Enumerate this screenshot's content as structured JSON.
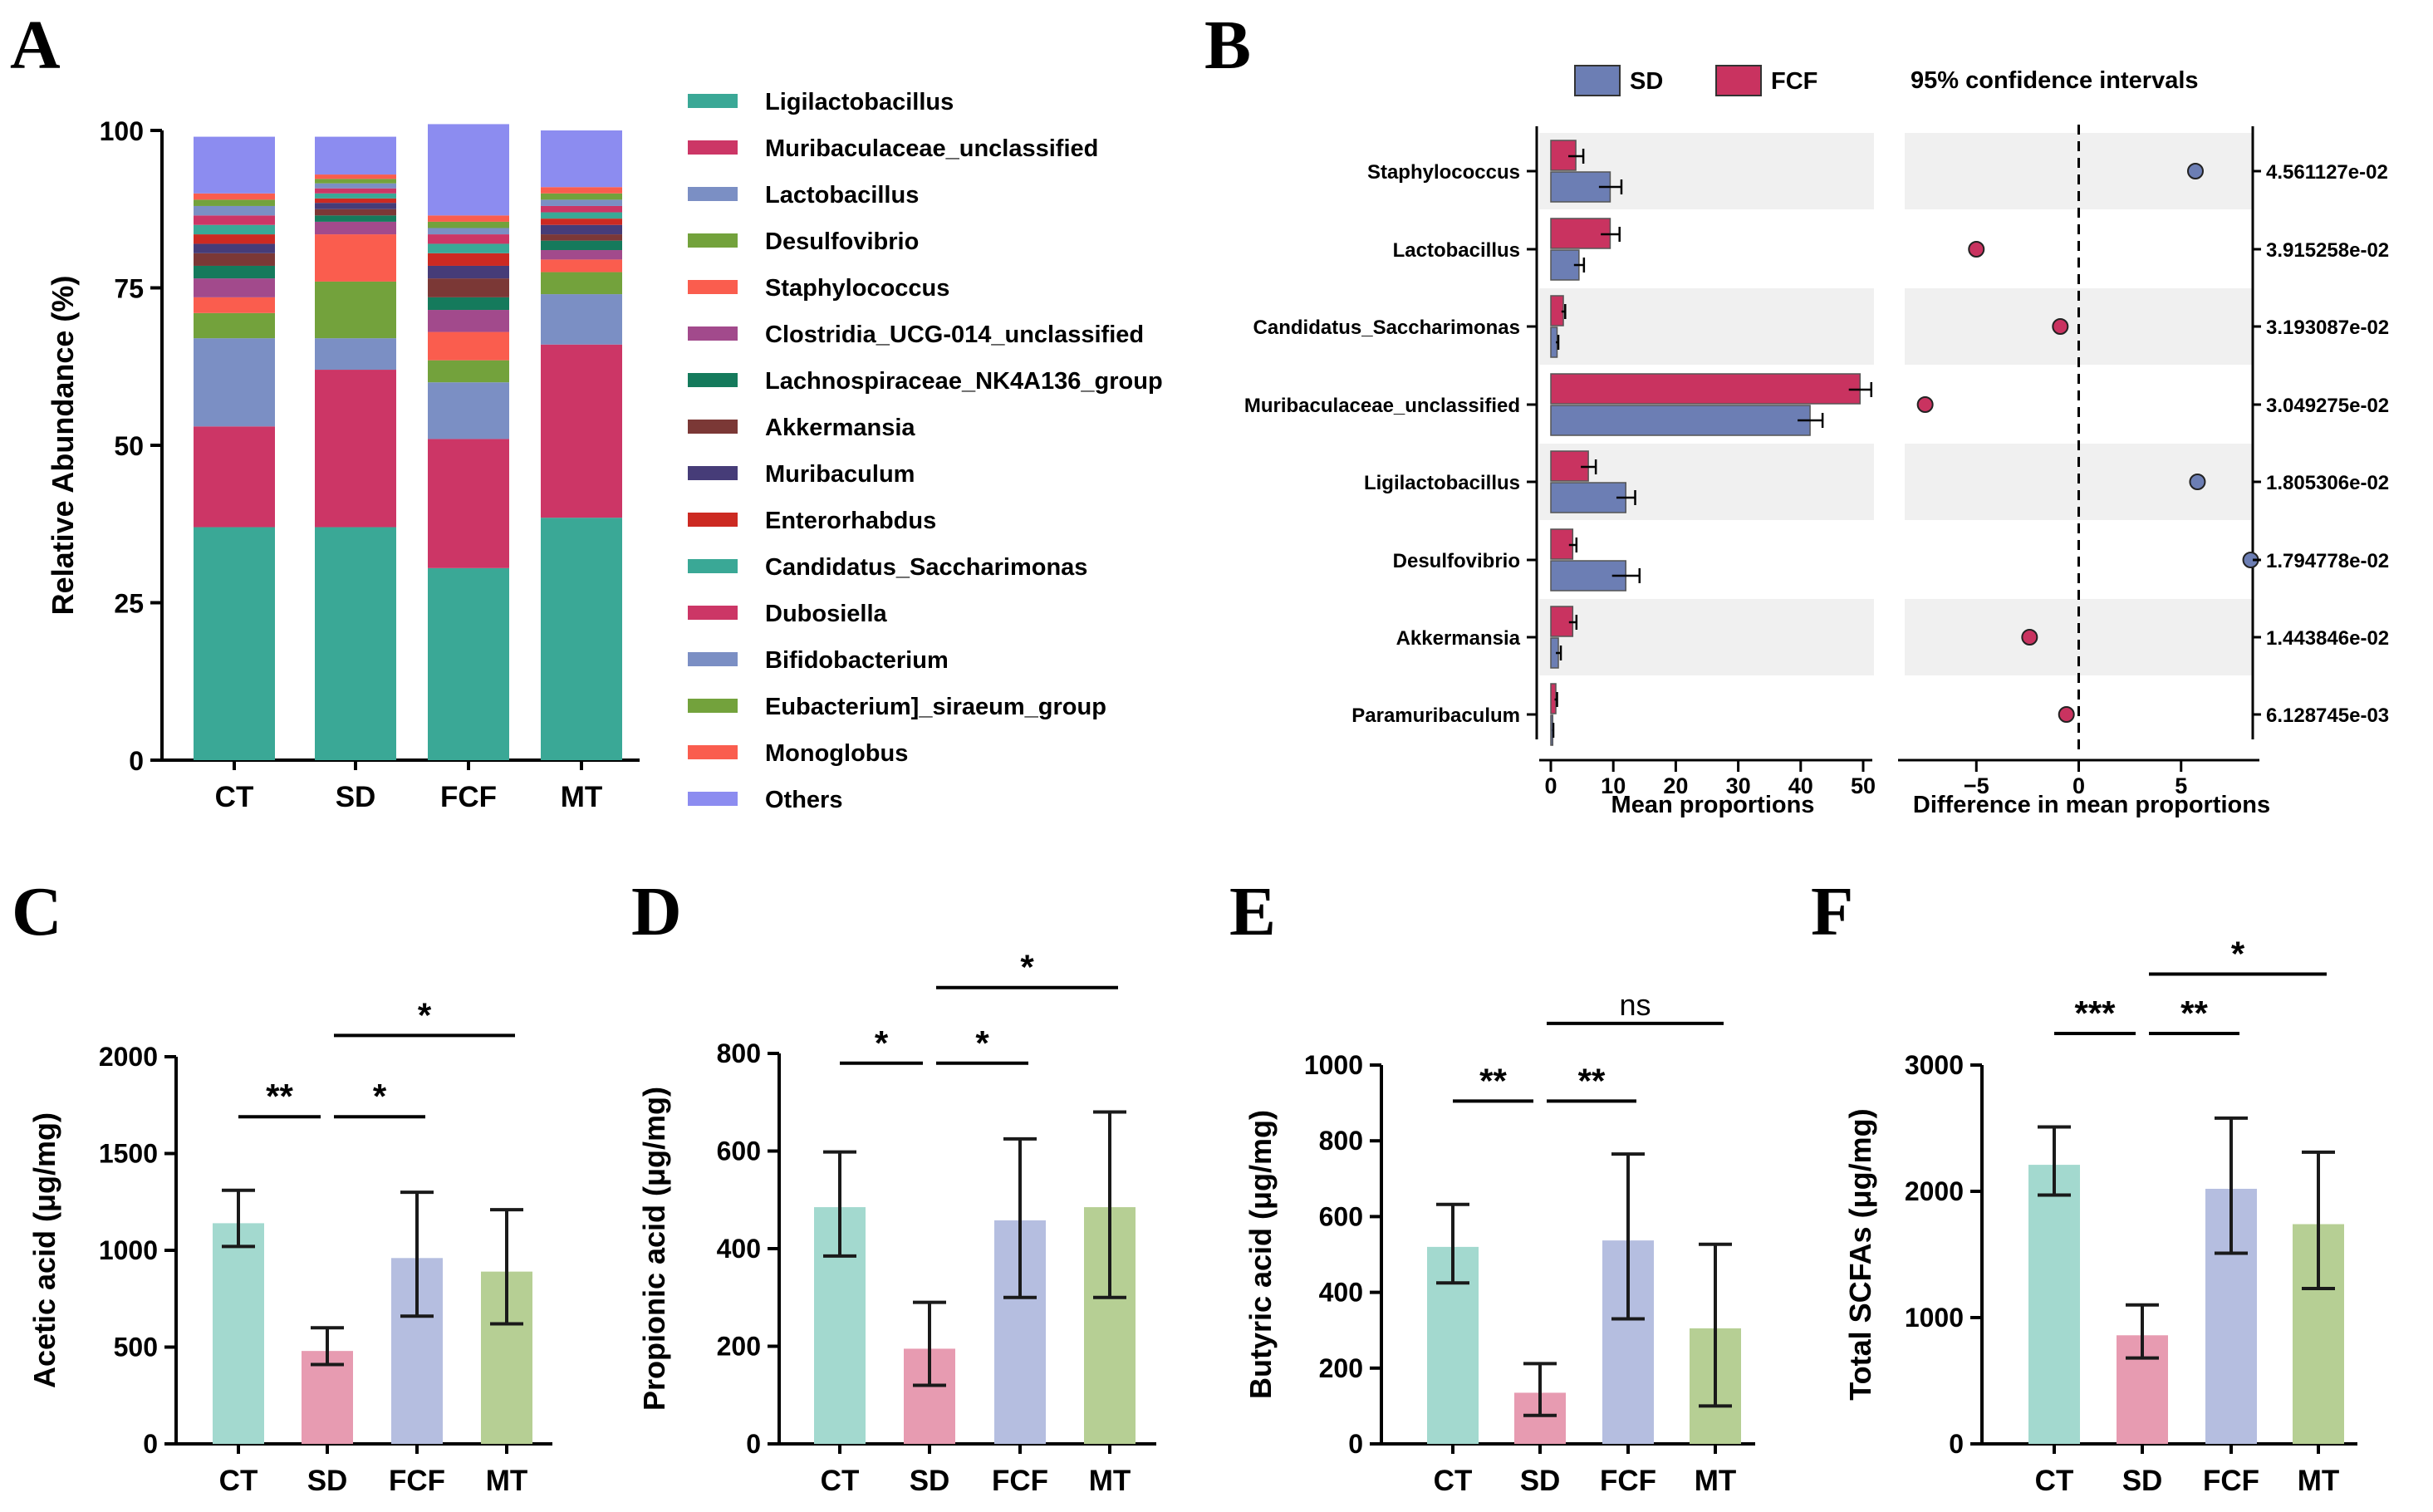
{
  "panels": {
    "a": "A",
    "b": "B",
    "c": "C",
    "d": "D",
    "e": "E",
    "f": "F"
  },
  "chart_data": [
    {
      "id": "A",
      "type": "bar",
      "stacked": true,
      "title": "",
      "xlabel": "",
      "ylabel": "Relative Abundance (%)",
      "ylim": [
        0,
        100
      ],
      "yticks": [
        "0",
        "25",
        "50",
        "75",
        "100"
      ],
      "categories": [
        "CT",
        "SD",
        "FCF",
        "MT"
      ],
      "series": [
        {
          "name": "Ligilactobacillus",
          "color": "#3aa896",
          "values": [
            37,
            37,
            30.5,
            38.5
          ]
        },
        {
          "name": "Muribaculaceae_unclassified",
          "color": "#cc3666",
          "values": [
            16,
            25,
            20.5,
            27.5
          ]
        },
        {
          "name": "Lactobacillus",
          "color": "#7b8fc4",
          "values": [
            14,
            5,
            9,
            8
          ]
        },
        {
          "name": "Desulfovibrio",
          "color": "#73a23c",
          "values": [
            4,
            9,
            3.5,
            3.5
          ]
        },
        {
          "name": "Staphylococcus",
          "color": "#fa5d4e",
          "values": [
            2.5,
            7.5,
            4.5,
            2
          ]
        },
        {
          "name": "Clostridia_UCG-014_unclassified",
          "color": "#a24a8c",
          "values": [
            3,
            2,
            3.5,
            1.5
          ]
        },
        {
          "name": "Lachnospiraceae_NK4A136_group",
          "color": "#157a5c",
          "values": [
            2,
            1,
            2,
            1.5
          ]
        },
        {
          "name": "Akkermansia",
          "color": "#7b3836",
          "values": [
            2,
            1,
            3,
            1
          ]
        },
        {
          "name": "Muribaculum",
          "color": "#463c78",
          "values": [
            1.5,
            1,
            2,
            1.5
          ]
        },
        {
          "name": "Enterorhabdus",
          "color": "#cc2a22",
          "values": [
            1.5,
            0.7,
            2,
            1
          ]
        },
        {
          "name": "Candidatus_Saccharimonas",
          "color": "#3aa896",
          "values": [
            1.5,
            0.8,
            1.5,
            1
          ]
        },
        {
          "name": "Dubosiella",
          "color": "#cc3666",
          "values": [
            1.5,
            0.8,
            1.5,
            1
          ]
        },
        {
          "name": "Bifidobacterium",
          "color": "#7b8fc4",
          "values": [
            1.5,
            0.8,
            1,
            1
          ]
        },
        {
          "name": "Eubacterium]_siraeum_group",
          "color": "#73a23c",
          "values": [
            1,
            0.7,
            1,
            1
          ]
        },
        {
          "name": "Monoglobus",
          "color": "#fa5d4e",
          "values": [
            1,
            0.7,
            1,
            1
          ]
        },
        {
          "name": "Others",
          "color": "#8c8cf0",
          "values": [
            9.0,
            6.0,
            14.5,
            9.0
          ]
        }
      ]
    },
    {
      "id": "B",
      "type": "bar",
      "subtype": "extended-error-bar",
      "legend": [
        "SD",
        "FCF"
      ],
      "colors": {
        "SD": "#6c7eb4",
        "FCF": "#c93360"
      },
      "ci_title": "95% confidence intervals",
      "xlabel_left": "Mean proportions",
      "xlabel_right": "Difference in mean proportions",
      "xlim_left": [
        0,
        55
      ],
      "xticks_left": [
        "0",
        "10",
        "20",
        "30",
        "40",
        "50"
      ],
      "xlim_right": [
        -8.5,
        8.5
      ],
      "xticks_right": [
        "−5",
        "0",
        "5"
      ],
      "categories": [
        "Staphylococcus",
        "Lactobacillus",
        "Candidatus_Saccharimonas",
        "Muribaculaceae_unclassified",
        "Ligilactobacillus",
        "Desulfovibrio",
        "Akkermansia",
        "Paramuribaculum"
      ],
      "sd_values": [
        9.5,
        4.5,
        1.0,
        41.5,
        12.0,
        12.0,
        1.2,
        0.3
      ],
      "sd_errors": [
        1.8,
        0.8,
        0.2,
        2.0,
        1.5,
        2.2,
        0.4,
        0.1
      ],
      "fcf_values": [
        4.0,
        9.5,
        2.0,
        49.5,
        6.0,
        3.5,
        3.5,
        0.8
      ],
      "fcf_errors": [
        1.2,
        1.5,
        0.3,
        1.8,
        1.2,
        0.6,
        0.6,
        0.2
      ],
      "differences": [
        5.7,
        -5.0,
        -0.9,
        -7.5,
        5.8,
        8.4,
        -2.4,
        -0.6
      ],
      "p_values": [
        "4.561127e-02",
        "3.915258e-02",
        "3.193087e-02",
        "3.049275e-02",
        "1.805306e-02",
        "1.794778e-02",
        "1.443846e-02",
        "6.128745e-03"
      ]
    },
    {
      "id": "C",
      "type": "bar",
      "ylabel": "Acetic acid (μg/mg)",
      "ylim": [
        0,
        2000
      ],
      "yticks": [
        "0",
        "500",
        "1000",
        "1500",
        "2000"
      ],
      "categories": [
        "CT",
        "SD",
        "FCF",
        "MT"
      ],
      "values": [
        1140,
        480,
        960,
        890
      ],
      "err_low": [
        1020,
        410,
        660,
        620
      ],
      "err_high": [
        1310,
        600,
        1300,
        1210
      ],
      "brackets": [
        {
          "from": 0,
          "to": 1,
          "y": 1690,
          "label": "**"
        },
        {
          "from": 1,
          "to": 2,
          "y": 1690,
          "label": "*"
        },
        {
          "from": 1,
          "to": 3,
          "y": 2110,
          "label": "*"
        }
      ]
    },
    {
      "id": "D",
      "type": "bar",
      "ylabel": "Propionic acid (μg/mg)",
      "ylim": [
        0,
        800
      ],
      "yticks": [
        "0",
        "200",
        "400",
        "600",
        "800"
      ],
      "categories": [
        "CT",
        "SD",
        "FCF",
        "MT"
      ],
      "values": [
        485,
        195,
        458,
        485
      ],
      "err_low": [
        385,
        120,
        300,
        300
      ],
      "err_high": [
        598,
        290,
        625,
        680
      ],
      "brackets": [
        {
          "from": 0,
          "to": 1,
          "y": 780,
          "label": "*"
        },
        {
          "from": 1,
          "to": 2,
          "y": 780,
          "label": "*"
        },
        {
          "from": 1,
          "to": 3,
          "y": 935,
          "label": "*"
        }
      ]
    },
    {
      "id": "E",
      "type": "bar",
      "ylabel": "Butyric acid (μg/mg)",
      "ylim": [
        0,
        1000
      ],
      "yticks": [
        "0",
        "200",
        "400",
        "600",
        "800",
        "1000"
      ],
      "categories": [
        "CT",
        "SD",
        "FCF",
        "MT"
      ],
      "values": [
        520,
        135,
        537,
        305
      ],
      "err_low": [
        425,
        75,
        330,
        100
      ],
      "err_high": [
        632,
        212,
        765,
        527
      ],
      "brackets": [
        {
          "from": 0,
          "to": 1,
          "y": 905,
          "label": "**"
        },
        {
          "from": 1,
          "to": 2,
          "y": 905,
          "label": "**"
        },
        {
          "from": 1,
          "to": 3,
          "y": 1110,
          "label": "ns"
        }
      ]
    },
    {
      "id": "F",
      "type": "bar",
      "ylabel": "Total SCFAs (μg/mg)",
      "ylim": [
        0,
        3000
      ],
      "yticks": [
        "0",
        "1000",
        "2000",
        "3000"
      ],
      "categories": [
        "CT",
        "SD",
        "FCF",
        "MT"
      ],
      "values": [
        2210,
        860,
        2020,
        1740
      ],
      "err_low": [
        1970,
        680,
        1510,
        1230
      ],
      "err_high": [
        2510,
        1100,
        2580,
        2310
      ],
      "brackets": [
        {
          "from": 0,
          "to": 1,
          "y": 3250,
          "label": "***"
        },
        {
          "from": 1,
          "to": 2,
          "y": 3250,
          "label": "**"
        },
        {
          "from": 1,
          "to": 3,
          "y": 3720,
          "label": "*"
        }
      ]
    }
  ],
  "bar_colors": [
    "#a3d9cf",
    "#e79bb1",
    "#b5bee0",
    "#b6cf94"
  ],
  "error_color": "#1a1a1a"
}
